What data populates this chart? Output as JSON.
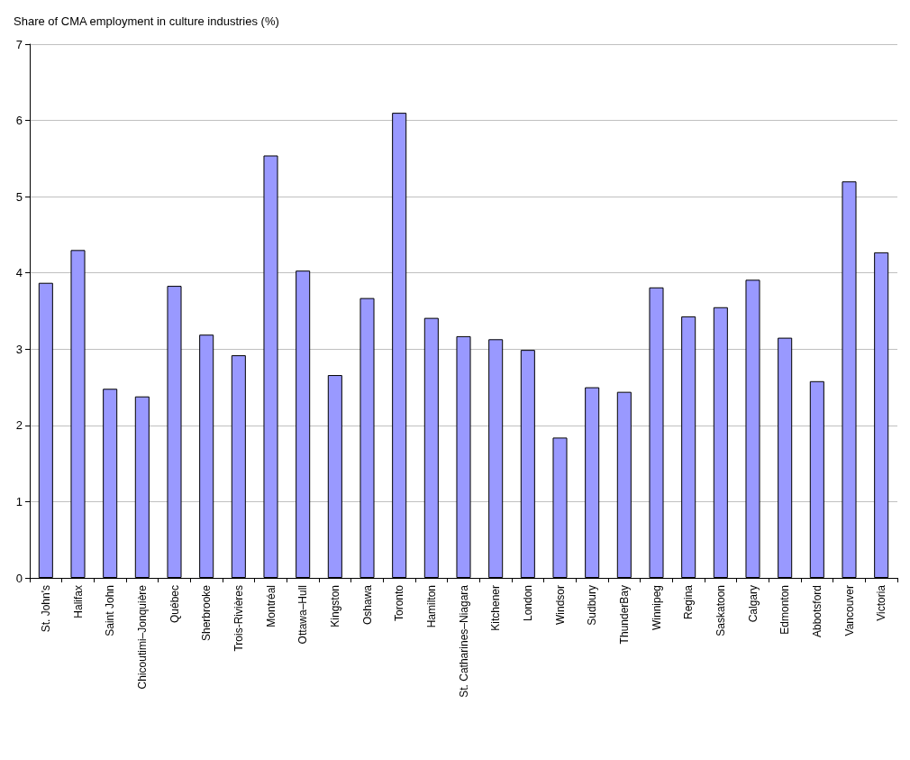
{
  "chart_data": {
    "type": "bar",
    "title": "Share of CMA employment in culture industries (%)",
    "categories": [
      "St. John's",
      "Halifax",
      "Saint John",
      "Chicoutimi–Jonquière",
      "Québec",
      "Sherbrooke",
      "Trois-Rivières",
      "Montréal",
      "Ottawa–Hull",
      "Kingston",
      "Oshawa",
      "Toronto",
      "Hamilton",
      "St. Catharines–Niagara",
      "Kitchener",
      "London",
      "Windsor",
      "Sudbury",
      "ThunderBay",
      "Winnipeg",
      "Regina",
      "Saskatoon",
      "Calgary",
      "Edmonton",
      "Abbotsford",
      "Vancouver",
      "Victoria"
    ],
    "values": [
      3.87,
      4.3,
      2.48,
      2.38,
      3.83,
      3.19,
      2.92,
      5.54,
      4.03,
      2.66,
      3.67,
      6.1,
      3.41,
      3.17,
      3.13,
      2.99,
      1.84,
      2.5,
      2.44,
      3.81,
      3.43,
      3.55,
      3.91,
      3.15,
      2.58,
      5.2,
      4.27
    ],
    "color": "#9999ff",
    "ylim": [
      0,
      7
    ],
    "yticks": [
      0,
      1,
      2,
      3,
      4,
      5,
      6,
      7
    ],
    "grid": "y"
  }
}
